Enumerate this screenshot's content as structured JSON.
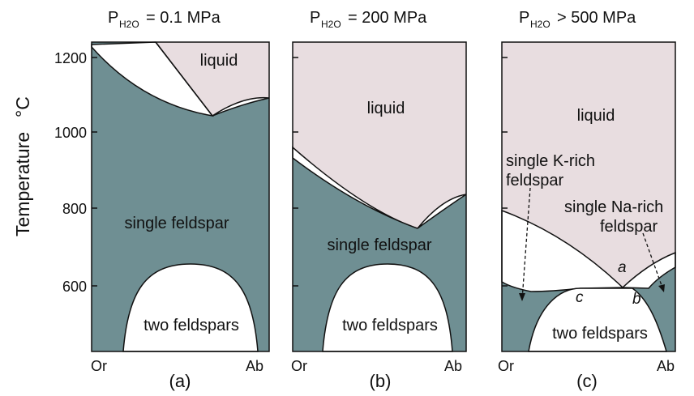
{
  "colors": {
    "single_feldspar": "#6f8f93",
    "liquid": "#e8dde0",
    "white": "#ffffff",
    "line": "#111111"
  },
  "y_axis": {
    "label": "Temperature",
    "unit": "°C",
    "ticks": [
      "1200",
      "1000",
      "800",
      "600"
    ]
  },
  "panels": [
    {
      "title_prefix": "P",
      "title_sub": "H2O",
      "title_value": "= 0.1 MPa",
      "caption": "(a)",
      "x_left": "Or",
      "x_right": "Ab",
      "regions": [
        "liquid",
        "single feldspar",
        "two feldspars"
      ]
    },
    {
      "title_prefix": "P",
      "title_sub": "H2O",
      "title_value": "= 200 MPa",
      "caption": "(b)",
      "x_left": "Or",
      "x_right": "Ab",
      "regions": [
        "liquid",
        "single feldspar",
        "two feldspars"
      ]
    },
    {
      "title_prefix": "P",
      "title_sub": "H2O",
      "title_value": "> 500 MPa",
      "caption": "(c)",
      "x_left": "Or",
      "x_right": "Ab",
      "regions": [
        "liquid",
        "two feldspars"
      ],
      "annotations": {
        "k_rich_line1": "single K-rich",
        "k_rich_line2": "feldspar",
        "na_rich_line1": "single Na-rich",
        "na_rich_line2": "feldspar",
        "point_a": "a",
        "point_b": "b",
        "point_c": "c"
      }
    }
  ]
}
